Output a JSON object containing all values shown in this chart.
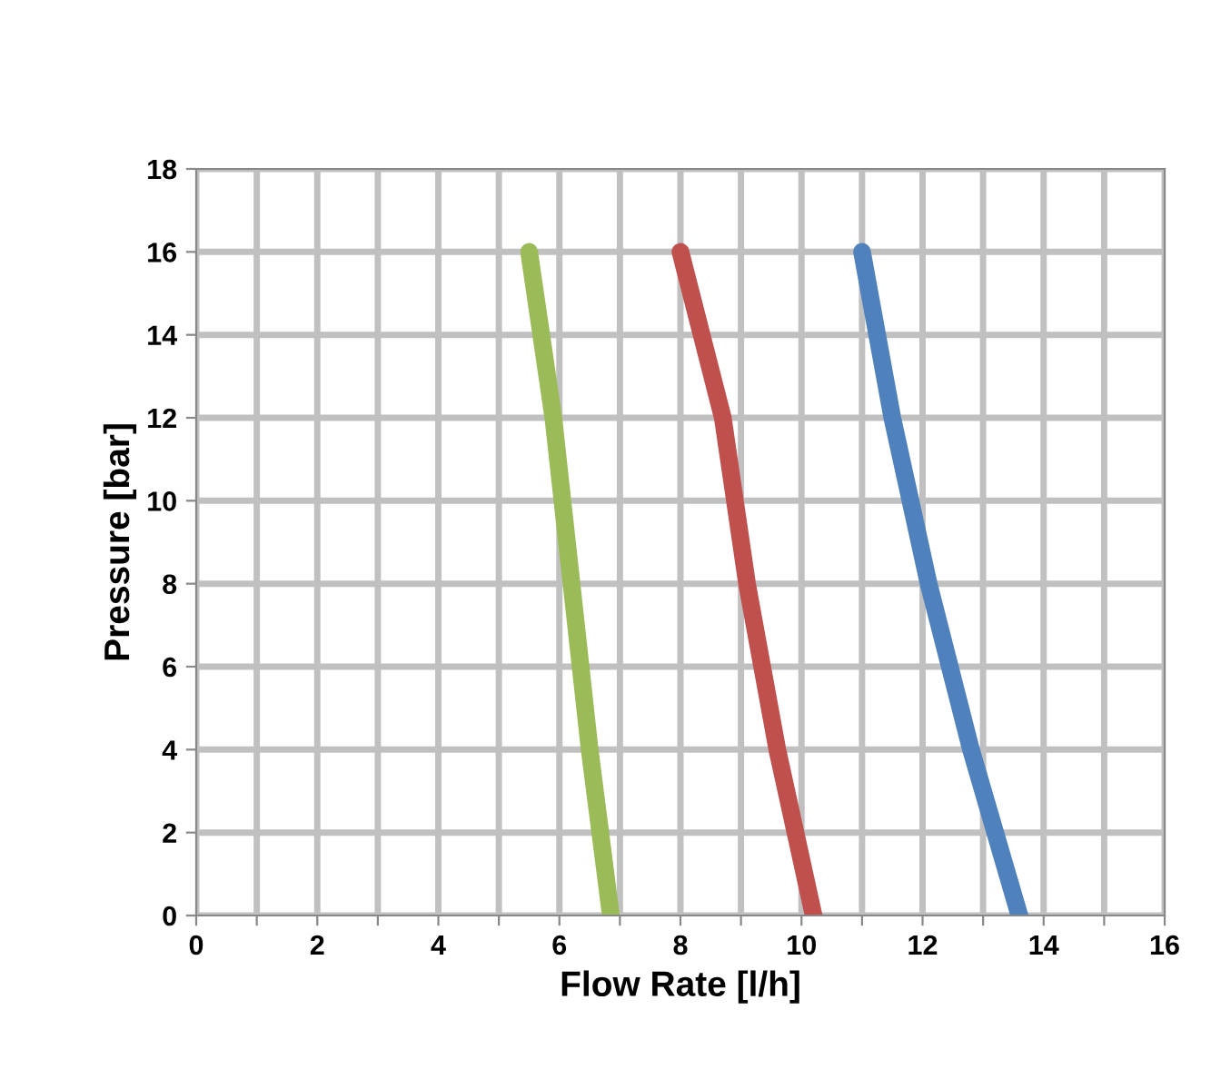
{
  "chart_data": {
    "type": "line",
    "xlabel": "Flow Rate [l/h]",
    "ylabel": "Pressure [bar]",
    "series": [
      {
        "color": "#9bbb59",
        "x": [
          6.85,
          6.5,
          6.2,
          5.9,
          5.5
        ],
        "values": [
          0,
          4,
          8,
          12,
          16
        ]
      },
      {
        "color": "#c0504d",
        "x": [
          10.2,
          9.6,
          9.1,
          8.7,
          8.0
        ],
        "values": [
          0,
          4,
          8,
          12,
          16
        ]
      },
      {
        "color": "#4f81bd",
        "x": [
          13.6,
          12.8,
          12.1,
          11.5,
          11.0
        ],
        "values": [
          0,
          4,
          8,
          12,
          16
        ]
      }
    ],
    "xlim": [
      0,
      16
    ],
    "ylim": [
      0,
      18
    ],
    "xticks": [
      0,
      {
        "value": 1,
        "label": null
      },
      2,
      {
        "value": 3,
        "label": null
      },
      4,
      {
        "value": 5,
        "label": null
      },
      6,
      {
        "value": 7,
        "label": null
      },
      8,
      {
        "value": 9,
        "label": null
      },
      10,
      {
        "value": 11,
        "label": null
      },
      12,
      {
        "value": 13,
        "label": null
      },
      14,
      {
        "value": 15,
        "label": null
      },
      16
    ],
    "yticks": [
      0,
      2,
      4,
      6,
      8,
      10,
      12,
      14,
      16,
      18
    ],
    "grid": true,
    "marker": "none",
    "line_style": "solid",
    "legend": false
  }
}
